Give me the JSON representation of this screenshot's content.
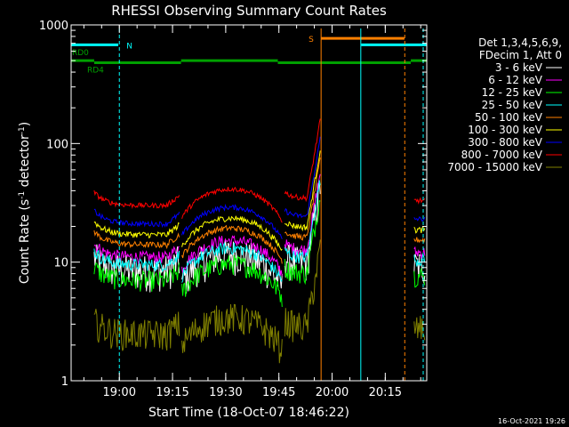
{
  "title": "RHESSI Observing Summary Count Rates",
  "footer_date": "16-Oct-2021 19:26",
  "colors": {
    "background": "#000000",
    "axis": "#ffffff",
    "bar_green": "#00a000",
    "bar_cyan": "#00ffff",
    "bar_orange": "#ff8000"
  },
  "chart_data": {
    "type": "line",
    "title": "RHESSI Observing Summary Count Rates",
    "xlabel": "Start Time (18-Oct-07 18:46:22)",
    "ylabel": "Count Rate (s",
    "ylabel_sup1": "-1",
    "ylabel_mid": " detector",
    "ylabel_sup2": "-1",
    "ylabel_end": ")",
    "x_start_min": 0,
    "x_ticks": [
      {
        "label": "19:00",
        "min": 13.6
      },
      {
        "label": "19:15",
        "min": 28.6
      },
      {
        "label": "19:30",
        "min": 43.6
      },
      {
        "label": "19:45",
        "min": 58.6
      },
      {
        "label": "20:00",
        "min": 73.6
      },
      {
        "label": "20:15",
        "min": 88.6
      }
    ],
    "xlim_min": [
      0,
      100.3
    ],
    "y_ticks": [
      {
        "label": "1",
        "value": 1
      },
      {
        "label": "10",
        "value": 10
      },
      {
        "label": "100",
        "value": 100
      },
      {
        "label": "1000",
        "value": 1000
      }
    ],
    "yscale": "log",
    "ylim": [
      1,
      1000
    ],
    "legend_header": [
      "Det 1,3,4,5,6,9,",
      "FDecim 1, Att 0"
    ],
    "series": [
      {
        "name": "3 - 6 keV",
        "color": "#ffffff",
        "base": 8.5,
        "flare": 1.0,
        "noise": 0.35
      },
      {
        "name": "6 - 12 keV",
        "color": "#ff00ff",
        "base": 11,
        "flare": 1.0,
        "noise": 0.12
      },
      {
        "name": "12 - 25 keV",
        "color": "#00ff00",
        "base": 7,
        "flare": 1.0,
        "noise": 0.2
      },
      {
        "name": "25 - 50 keV",
        "color": "#00ffff",
        "base": 9.5,
        "flare": 1.0,
        "noise": 0.12
      },
      {
        "name": "50 - 100 keV",
        "color": "#ff8000",
        "base": 14,
        "flare": 1.0,
        "noise": 0.06
      },
      {
        "name": "100 - 300 keV",
        "color": "#ffff00",
        "base": 17,
        "flare": 1.0,
        "noise": 0.06
      },
      {
        "name": "300 - 800 keV",
        "color": "#0000ff",
        "base": 21,
        "flare": 1.0,
        "noise": 0.05
      },
      {
        "name": "800 - 7000 keV",
        "color": "#ff0000",
        "base": 30,
        "flare": 1.0,
        "noise": 0.05
      },
      {
        "name": "7000 - 15000 keV",
        "color": "#808000",
        "base": 2.5,
        "flare": 1.0,
        "noise": 0.3
      }
    ],
    "bars": {
      "RD0": {
        "label": "RD0",
        "value": 500,
        "color": "#00a000"
      },
      "RD4": {
        "label": "RD4",
        "value": 480,
        "color": "#00a000"
      },
      "N": {
        "label": "N",
        "value": 680,
        "color": "#00ffff"
      },
      "S": {
        "label": "S",
        "value": 770,
        "color": "#ff8000"
      }
    }
  }
}
